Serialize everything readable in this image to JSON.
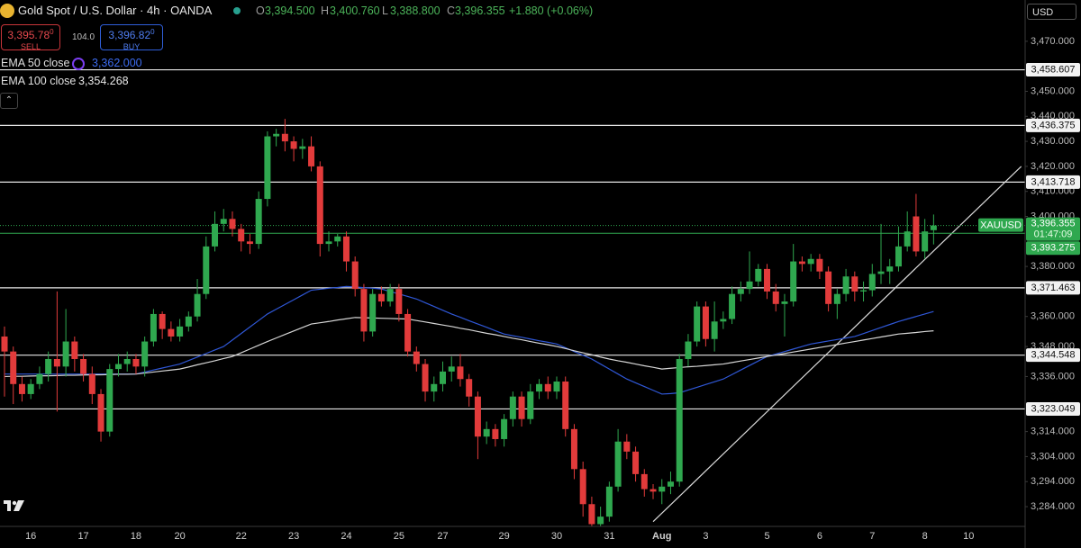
{
  "chart_data": {
    "type": "candlestick",
    "title": "Gold Spot / U.S. Dollar · 4h · OANDA",
    "currency": "USD",
    "categories": [
      null,
      null,
      null,
      "16",
      null,
      null,
      null,
      null,
      null,
      "17",
      null,
      null,
      null,
      null,
      null,
      "18",
      null,
      null,
      null,
      null,
      "20",
      null,
      null,
      null,
      null,
      null,
      null,
      "22",
      null,
      null,
      null,
      null,
      null,
      "23",
      null,
      null,
      null,
      null,
      null,
      "24",
      null,
      null,
      null,
      null,
      null,
      "25",
      null,
      null,
      null,
      null,
      "27",
      null,
      null,
      null,
      null,
      null,
      null,
      "29",
      null,
      null,
      null,
      null,
      null,
      "30",
      null,
      null,
      null,
      null,
      null,
      "31",
      null,
      null,
      null,
      null,
      null,
      "Aug",
      null,
      null,
      null,
      null,
      "3",
      null,
      null,
      null,
      null,
      null,
      null,
      "5",
      null,
      null,
      null,
      null,
      null,
      "6",
      null,
      null,
      null,
      null,
      null,
      "7",
      null,
      null,
      null,
      null,
      null,
      "8",
      null,
      null,
      null,
      null,
      "10",
      null,
      null,
      null,
      null,
      null,
      null
    ],
    "open": [
      3352,
      3346,
      3333,
      3329,
      3333,
      3337,
      3343,
      3340,
      3350,
      3343,
      3337,
      3329,
      3314,
      3339,
      3341,
      3343,
      3340,
      3350,
      3361,
      3355,
      3352,
      3356,
      3360,
      3369,
      3388,
      3397,
      3399,
      3395,
      3390,
      3389,
      3407,
      3432,
      3433,
      3430,
      3427,
      3428,
      3420,
      3389,
      3390,
      3392,
      3382,
      3371,
      3354,
      3369,
      3366,
      3371,
      3361,
      3346,
      3341,
      3330,
      3333,
      3338,
      3340,
      3335,
      3328,
      3312,
      3315,
      3311,
      3319,
      3328,
      3319,
      3330,
      3333,
      3330,
      3334,
      3315,
      3299,
      3285,
      3277,
      3280,
      3292,
      3310,
      3306,
      3297,
      3291,
      3290,
      3292,
      3294,
      3343,
      3350,
      3364,
      3351,
      3358,
      3359,
      3369,
      3371,
      3374,
      3379,
      3370,
      3365,
      3366,
      3382,
      3381,
      3383,
      3378,
      3365,
      3369,
      3376,
      3370,
      3370.5,
      3377,
      3378,
      3380,
      3388,
      3400,
      3386,
      3394.5,
      null,
      null,
      null,
      null,
      null,
      null,
      null,
      null,
      null,
      null
    ],
    "high": [
      3356,
      3348,
      3336,
      3335,
      3340,
      3346,
      3370,
      3363,
      3352,
      3345,
      3340,
      3331,
      3341,
      3345,
      3346,
      3345,
      3352,
      3363,
      3362,
      3358,
      3359,
      3362,
      3375,
      3392,
      3402,
      3403,
      3402,
      3397,
      3393,
      3410,
      3434,
      3435,
      3439,
      3432,
      3431,
      3432,
      3422,
      3394,
      3393,
      3394,
      3384,
      3373,
      3371,
      3372,
      3373,
      3373,
      3363,
      3348,
      3343,
      3336,
      3342,
      3344,
      3345,
      3337,
      3330,
      3318,
      3317,
      3321,
      3330,
      3330,
      3333,
      3335,
      3336,
      3336,
      3336,
      3317,
      3302,
      3288,
      3284,
      3294,
      3315,
      3313,
      3308,
      3299,
      3293,
      3295,
      3298,
      3345,
      3353,
      3366,
      3366,
      3366,
      3362,
      3372,
      3374,
      3386,
      3381,
      3381,
      3373,
      3369,
      3389,
      3384,
      3385,
      3385,
      3380,
      3371,
      3379,
      3378,
      3374,
      3381,
      3397,
      3383,
      3396,
      3402,
      3409,
      3399,
      3400.76,
      null,
      null,
      null,
      null,
      null,
      null,
      null,
      null,
      null,
      null
    ],
    "low": [
      3328,
      3325,
      3326,
      3327,
      3331,
      3334,
      3322,
      3336,
      3338,
      3334,
      3325,
      3310,
      3312,
      3336,
      3338,
      3337,
      3336,
      3348,
      3351,
      3350,
      3350,
      3354,
      3358,
      3367,
      3386,
      3394,
      3392,
      3386,
      3385,
      3387,
      3404,
      3428,
      3426,
      3422,
      3423,
      3418,
      3384,
      3386,
      3388,
      3378,
      3368,
      3350,
      3352,
      3364,
      3364,
      3358,
      3344,
      3338,
      3326,
      3326,
      3330,
      3334,
      3332,
      3324,
      3303,
      3309,
      3308,
      3308,
      3316,
      3316,
      3317,
      3327,
      3327,
      3327,
      3312,
      3295,
      3280,
      3276,
      3276,
      3278,
      3290,
      3303,
      3294,
      3288,
      3287,
      3285,
      3289,
      3292,
      3340,
      3348,
      3348,
      3346,
      3355,
      3357,
      3366,
      3369,
      3372,
      3367,
      3362,
      3352,
      3364,
      3378,
      3378,
      3375,
      3362,
      3359,
      3366,
      3366,
      3366,
      3368,
      3373,
      3373,
      3378,
      3386,
      3384,
      3383,
      3388.8,
      null,
      null,
      null,
      null,
      null,
      null,
      null,
      null,
      null,
      null
    ],
    "close": [
      3346,
      3333,
      3329,
      3333,
      3337,
      3343,
      3340,
      3350,
      3343,
      3337,
      3329,
      3314,
      3339,
      3341,
      3343,
      3340,
      3350,
      3361,
      3355,
      3352,
      3356,
      3360,
      3369,
      3388,
      3397,
      3399,
      3395,
      3390,
      3389,
      3407,
      3432,
      3433,
      3430,
      3427,
      3428,
      3420,
      3389,
      3390,
      3392,
      3382,
      3371,
      3354,
      3369,
      3366,
      3371,
      3361,
      3346,
      3341,
      3330,
      3333,
      3338,
      3340,
      3335,
      3328,
      3312,
      3315,
      3311,
      3319,
      3328,
      3319,
      3330,
      3333,
      3330,
      3334,
      3315,
      3299,
      3285,
      3277,
      3280,
      3292,
      3310,
      3306,
      3297,
      3291,
      3290,
      3292,
      3294,
      3343,
      3350,
      3364,
      3351,
      3358,
      3359,
      3369,
      3371,
      3374,
      3379,
      3370,
      3365,
      3366,
      3382,
      3381,
      3383,
      3378,
      3365,
      3369,
      3376,
      3370,
      3370.5,
      3377,
      3378,
      3380,
      3388,
      3394,
      3386,
      3394,
      3396.355,
      null,
      null,
      null,
      null,
      null,
      null,
      null,
      null,
      null,
      null
    ],
    "up_color": "#2fa84f",
    "down_color": "#e23b3b",
    "series": [
      {
        "name": "EMA 50 close",
        "color": "#2f57d6",
        "legend_value": "3,362.000",
        "values": [
          3337,
          3337,
          3337,
          3337,
          3337,
          3337,
          3337,
          3337,
          3337,
          3337,
          3337,
          3337,
          3337,
          3337,
          3337,
          3337,
          3337.8,
          3338.6,
          3339.4,
          3340.2,
          3341,
          3342.4,
          3343.8,
          3345.2,
          3346.6,
          3348,
          3350.6,
          3353.2,
          3355.8,
          3358.4,
          3361,
          3362.9,
          3364.8,
          3366.7,
          3368.6,
          3370.5,
          3370.9,
          3371.3,
          3371.6,
          3372,
          3371.8,
          3371.5,
          3371.3,
          3371,
          3370,
          3369,
          3368,
          3367,
          3365.5,
          3364,
          3362.5,
          3361,
          3359.7,
          3358.3,
          3357,
          3355.7,
          3354.3,
          3353,
          3352.3,
          3351.7,
          3351,
          3350.3,
          3349.7,
          3349,
          3347.5,
          3346,
          3344.5,
          3343,
          3341,
          3339,
          3337,
          3335,
          3333.5,
          3332,
          3330.5,
          3329,
          3329.2,
          3329.5,
          3330.6,
          3331.7,
          3332.8,
          3333.9,
          3335,
          3336.8,
          3338.6,
          3340.4,
          3342.2,
          3344,
          3345,
          3346,
          3347,
          3348,
          3349,
          3349.6,
          3350.2,
          3350.8,
          3351.4,
          3352,
          3353.2,
          3354.4,
          3355.6,
          3356.8,
          3358,
          3359,
          3360,
          3361,
          3362,
          null,
          null,
          null,
          null,
          null,
          null,
          null,
          null,
          null,
          null
        ]
      },
      {
        "name": "EMA 100 close",
        "color": "#d6d6d6",
        "legend_value": "3,354.268",
        "values": [
          3336,
          3336.1,
          3336.1,
          3336.2,
          3336.3,
          3336.3,
          3336.4,
          3336.5,
          3336.5,
          3336.6,
          3336.7,
          3336.7,
          3336.8,
          3336.9,
          3336.9,
          3337,
          3337.4,
          3337.8,
          3338.2,
          3338.6,
          3339,
          3339.8,
          3340.7,
          3341.5,
          3342.3,
          3343.2,
          3344,
          3345.5,
          3347,
          3348.5,
          3350,
          3351.4,
          3352.8,
          3354.2,
          3355.6,
          3357,
          3357.5,
          3358,
          3358.6,
          3359.1,
          3359.6,
          3359.5,
          3359.4,
          3359.3,
          3359.2,
          3359.1,
          3359,
          3358.4,
          3357.8,
          3357.2,
          3356.6,
          3356,
          3355.3,
          3354.7,
          3354,
          3353.3,
          3352.7,
          3352,
          3351.3,
          3350.7,
          3350,
          3349.3,
          3348.7,
          3348,
          3347.2,
          3346.3,
          3345.5,
          3344.7,
          3343.8,
          3343,
          3342.3,
          3341.7,
          3341,
          3340.3,
          3339.7,
          3339,
          3339.3,
          3339.6,
          3339.9,
          3340.1,
          3340.4,
          3340.7,
          3341,
          3341.6,
          3342.2,
          3342.8,
          3343.4,
          3344,
          3344.6,
          3345.2,
          3345.8,
          3346.4,
          3347,
          3347.6,
          3348.2,
          3348.8,
          3349.4,
          3350,
          3350.6,
          3351.2,
          3351.8,
          3352.4,
          3353,
          3353.3,
          3353.6,
          3354,
          3354.268,
          null,
          null,
          null,
          null,
          null,
          null,
          null,
          null,
          null,
          null
        ]
      }
    ],
    "levels": [
      {
        "value": 3458.607,
        "label": "3,458.607"
      },
      {
        "value": 3436.375,
        "label": "3,436.375"
      },
      {
        "value": 3413.718,
        "label": "3,413.718"
      },
      {
        "value": 3371.463,
        "label": "3,371.463"
      },
      {
        "value": 3344.548,
        "label": "3,344.548"
      },
      {
        "value": 3323.049,
        "label": "3,323.049"
      }
    ],
    "last_price": {
      "value": 3396.355,
      "label": "3,396.355",
      "symbol": "XAUUSD",
      "countdown": "01:47:09"
    },
    "bid_line": {
      "value": 3393.275,
      "label": "3,393.275"
    },
    "trendline": {
      "x": [
        74,
        116
      ],
      "y": [
        3278,
        3420
      ]
    },
    "ylim": [
      3276.1,
      3486.5
    ],
    "yticks": [
      {
        "value": 3284,
        "label": "3,284.000"
      },
      {
        "value": 3294,
        "label": "3,294.000"
      },
      {
        "value": 3304,
        "label": "3,304.000"
      },
      {
        "value": 3314,
        "label": "3,314.000"
      },
      {
        "value": 3336,
        "label": "3,336.000"
      },
      {
        "value": 3348,
        "label": "3,348.000"
      },
      {
        "value": 3360,
        "label": "3,360.000"
      },
      {
        "value": 3380,
        "label": "3,380.000"
      },
      {
        "value": 3400,
        "label": "3,400.000"
      },
      {
        "value": 3410,
        "label": "3,410.000"
      },
      {
        "value": 3420,
        "label": "3,420.000"
      },
      {
        "value": 3430,
        "label": "3,430.000"
      },
      {
        "value": 3440,
        "label": "3,440.000"
      },
      {
        "value": 3450,
        "label": "3,450.000"
      },
      {
        "value": 3470,
        "label": "3,470.000"
      }
    ],
    "grid": false
  },
  "header": {
    "open_label": "O",
    "open": "3,394.500",
    "high_label": "H",
    "high": "3,400.760",
    "low_label": "L",
    "low": "3,388.800",
    "close_label": "C",
    "close": "3,396.355",
    "change": "+1.880 (+0.06%)",
    "sell_price": "3,395.78",
    "sell_sup": "0",
    "sell": "SELL",
    "spread": "104.0",
    "buy_price": "3,396.82",
    "buy_sup": "0",
    "buy": "BUY"
  }
}
